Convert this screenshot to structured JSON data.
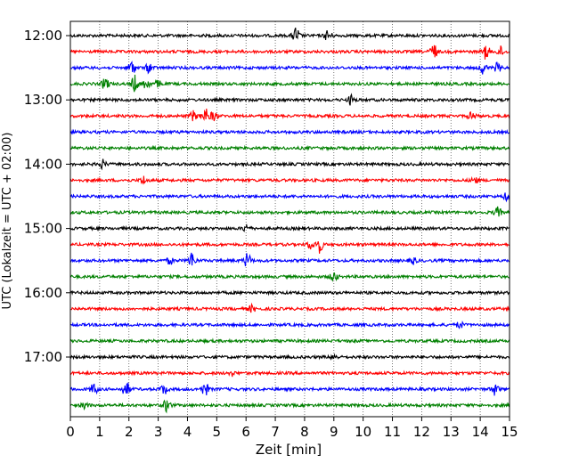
{
  "chart_data": {
    "type": "line",
    "subtype": "helicorder-seismogram",
    "title": "",
    "xlabel": "Zeit  [min]",
    "ylabel": "UTC (Lokalzeit = UTC + 02:00)",
    "xlim": [
      0,
      15
    ],
    "x_ticks": [
      "0",
      "1",
      "2",
      "3",
      "4",
      "5",
      "6",
      "7",
      "8",
      "9",
      "10",
      "11",
      "12",
      "13",
      "14",
      "15"
    ],
    "y_ticks": [
      "12:00",
      "13:00",
      "14:00",
      "15:00",
      "16:00",
      "17:00"
    ],
    "grid": "vertical dotted at each minute",
    "trace_colors": [
      "#000000",
      "#ff0000",
      "#0000ff",
      "#008000"
    ],
    "traces": [
      {
        "start": "12:00",
        "color": "#000000",
        "events": [
          {
            "t": 7.7,
            "a": 1.0
          },
          {
            "t": 8.8,
            "a": 0.7
          }
        ]
      },
      {
        "start": "12:15",
        "color": "#ff0000",
        "events": [
          {
            "t": 12.4,
            "a": 1.0
          },
          {
            "t": 14.2,
            "a": 0.9
          },
          {
            "t": 14.7,
            "a": 0.6
          }
        ]
      },
      {
        "start": "12:30",
        "color": "#0000ff",
        "events": [
          {
            "t": 2.1,
            "a": 0.9
          },
          {
            "t": 2.7,
            "a": 0.6
          },
          {
            "t": 14.1,
            "a": 0.7
          },
          {
            "t": 14.6,
            "a": 0.6
          }
        ]
      },
      {
        "start": "12:45",
        "color": "#008000",
        "events": [
          {
            "t": 1.2,
            "a": 0.8
          },
          {
            "t": 2.2,
            "a": 1.0
          },
          {
            "t": 2.6,
            "a": 0.7
          },
          {
            "t": 3.0,
            "a": 0.4
          }
        ]
      },
      {
        "start": "13:00",
        "color": "#000000",
        "events": [
          {
            "t": 9.6,
            "a": 0.6
          }
        ]
      },
      {
        "start": "13:15",
        "color": "#ff0000",
        "events": [
          {
            "t": 4.2,
            "a": 0.6
          },
          {
            "t": 4.6,
            "a": 1.0
          },
          {
            "t": 4.9,
            "a": 0.6
          },
          {
            "t": 13.7,
            "a": 0.5
          }
        ]
      },
      {
        "start": "13:30",
        "color": "#0000ff",
        "events": []
      },
      {
        "start": "13:45",
        "color": "#008000",
        "events": []
      },
      {
        "start": "14:00",
        "color": "#000000",
        "events": [
          {
            "t": 1.1,
            "a": 0.5
          }
        ]
      },
      {
        "start": "14:15",
        "color": "#ff0000",
        "events": [
          {
            "t": 2.5,
            "a": 0.5
          },
          {
            "t": 13.8,
            "a": 0.4
          }
        ]
      },
      {
        "start": "14:30",
        "color": "#0000ff",
        "events": [
          {
            "t": 14.9,
            "a": 0.4
          }
        ]
      },
      {
        "start": "14:45",
        "color": "#008000",
        "events": [
          {
            "t": 14.6,
            "a": 0.6
          }
        ]
      },
      {
        "start": "15:00",
        "color": "#000000",
        "events": [
          {
            "t": 6.0,
            "a": 0.4
          }
        ]
      },
      {
        "start": "15:15",
        "color": "#ff0000",
        "events": [
          {
            "t": 8.2,
            "a": 0.5
          },
          {
            "t": 8.5,
            "a": 1.0
          }
        ]
      },
      {
        "start": "15:30",
        "color": "#0000ff",
        "events": [
          {
            "t": 3.4,
            "a": 0.4
          },
          {
            "t": 4.15,
            "a": 1.0
          },
          {
            "t": 6.05,
            "a": 0.9
          },
          {
            "t": 11.7,
            "a": 0.4
          }
        ]
      },
      {
        "start": "15:45",
        "color": "#008000",
        "events": [
          {
            "t": 9.0,
            "a": 0.6
          }
        ]
      },
      {
        "start": "16:00",
        "color": "#000000",
        "events": []
      },
      {
        "start": "16:15",
        "color": "#ff0000",
        "events": [
          {
            "t": 6.2,
            "a": 0.4
          }
        ]
      },
      {
        "start": "16:30",
        "color": "#0000ff",
        "events": [
          {
            "t": 13.3,
            "a": 0.4
          }
        ]
      },
      {
        "start": "16:45",
        "color": "#008000",
        "events": []
      },
      {
        "start": "17:00",
        "color": "#000000",
        "events": [
          {
            "t": 9.0,
            "a": 0.3
          }
        ]
      },
      {
        "start": "17:15",
        "color": "#ff0000",
        "events": [
          {
            "t": 5.5,
            "a": 0.3
          }
        ]
      },
      {
        "start": "17:30",
        "color": "#0000ff",
        "events": [
          {
            "t": 0.8,
            "a": 0.7
          },
          {
            "t": 1.9,
            "a": 1.0
          },
          {
            "t": 3.2,
            "a": 0.6
          },
          {
            "t": 4.6,
            "a": 0.8
          },
          {
            "t": 14.5,
            "a": 0.7
          }
        ]
      },
      {
        "start": "17:45",
        "color": "#008000",
        "events": [
          {
            "t": 0.5,
            "a": 0.4
          },
          {
            "t": 3.3,
            "a": 0.8
          }
        ]
      }
    ]
  }
}
